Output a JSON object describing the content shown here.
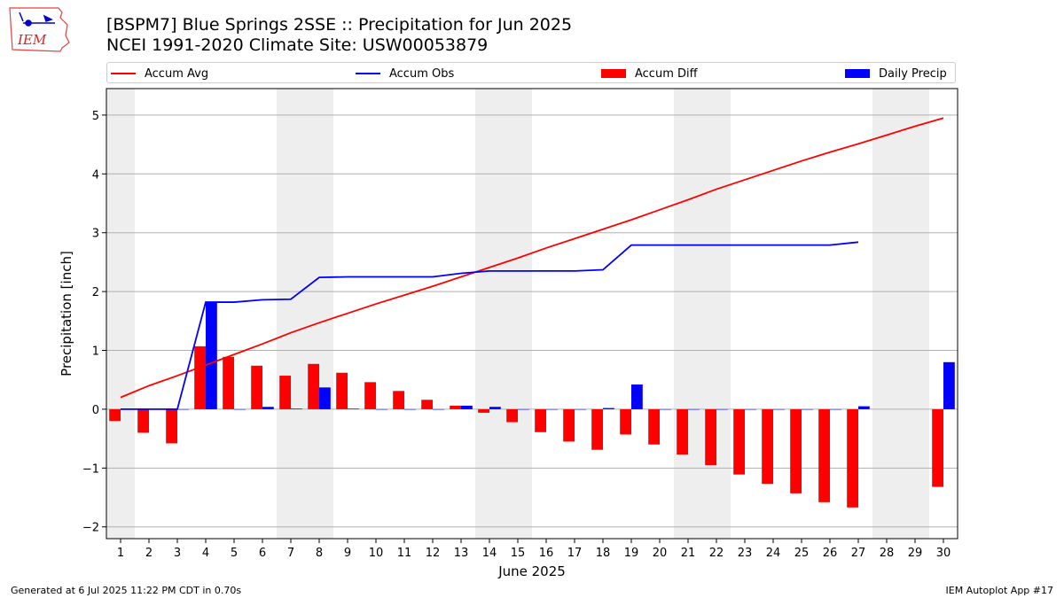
{
  "header": {
    "logo_text": "IEM",
    "title_line1": "[BSPM7] Blue Springs 2SSE :: Precipitation for Jun 2025",
    "title_line2": "NCEI 1991-2020 Climate Site: USW00053879"
  },
  "legend": {
    "placement": "top",
    "items": [
      {
        "label": "Accum Avg",
        "kind": "line",
        "color": "#ff0000"
      },
      {
        "label": "Accum Obs",
        "kind": "line",
        "color": "#0000ff"
      },
      {
        "label": "Accum Diff",
        "kind": "bar",
        "color": "#ff0000"
      },
      {
        "label": "Daily Precip",
        "kind": "bar",
        "color": "#0000ff"
      }
    ]
  },
  "footer": {
    "left": "Generated at 6 Jul 2025 11:22 PM CDT in 0.70s",
    "right": "IEM Autoplot App #17"
  },
  "chart_data": {
    "type": "bar",
    "title": "[BSPM7] Blue Springs 2SSE :: Precipitation for Jun 2025",
    "subtitle": "NCEI 1991-2020 Climate Site: USW00053879",
    "xlabel": "June 2025",
    "ylabel": "Precipitation [inch]",
    "xlim": [
      0.5,
      30.5
    ],
    "ylim": [
      -2.2,
      5.45
    ],
    "yticks": [
      -2,
      -1,
      0,
      1,
      2,
      3,
      4,
      5
    ],
    "ytick_labels": [
      "−2",
      "−1",
      "0",
      "1",
      "2",
      "3",
      "4",
      "5"
    ],
    "grid": "y",
    "weekend_shading": [
      [
        0.5,
        1.5
      ],
      [
        6.5,
        8.5
      ],
      [
        13.5,
        15.5
      ],
      [
        20.5,
        22.5
      ],
      [
        27.5,
        29.5
      ]
    ],
    "categories": [
      "1",
      "2",
      "3",
      "4",
      "5",
      "6",
      "7",
      "8",
      "9",
      "10",
      "11",
      "12",
      "13",
      "14",
      "15",
      "16",
      "17",
      "18",
      "19",
      "20",
      "21",
      "22",
      "23",
      "24",
      "25",
      "26",
      "27",
      "28",
      "29",
      "30"
    ],
    "series": [
      {
        "name": "Accum Avg",
        "type": "line",
        "color": "#ff0000",
        "values": [
          0.2,
          0.4,
          0.57,
          0.75,
          0.93,
          1.11,
          1.3,
          1.47,
          1.63,
          1.79,
          1.94,
          2.09,
          2.25,
          2.41,
          2.57,
          2.74,
          2.9,
          3.06,
          3.22,
          3.39,
          3.56,
          3.74,
          3.9,
          4.06,
          4.22,
          4.37,
          4.51,
          4.66,
          4.81,
          4.95
        ]
      },
      {
        "name": "Accum Obs",
        "type": "line",
        "color": "#0000ff",
        "values": [
          0.0,
          0.0,
          0.0,
          1.82,
          1.82,
          1.86,
          1.87,
          2.24,
          2.25,
          2.25,
          2.25,
          2.25,
          2.31,
          2.35,
          2.35,
          2.35,
          2.35,
          2.37,
          2.79,
          2.79,
          2.79,
          2.79,
          2.79,
          2.79,
          2.79,
          2.79,
          2.84,
          null,
          null,
          null
        ]
      },
      {
        "name": "Accum Diff",
        "type": "bar",
        "color": "#ff0000",
        "values": [
          -0.2,
          -0.4,
          -0.58,
          1.07,
          0.89,
          0.74,
          0.57,
          0.77,
          0.62,
          0.46,
          0.31,
          0.16,
          0.06,
          -0.06,
          -0.22,
          -0.39,
          -0.55,
          -0.69,
          -0.43,
          -0.6,
          -0.77,
          -0.95,
          -1.11,
          -1.27,
          -1.43,
          -1.58,
          -1.67,
          null,
          null,
          -1.32
        ]
      },
      {
        "name": "Daily Precip",
        "type": "bar",
        "color": "#0000ff",
        "values": [
          0.0,
          0.0,
          0.0,
          1.82,
          0.0,
          0.04,
          0.01,
          0.37,
          0.01,
          0.0,
          0.0,
          0.0,
          0.06,
          0.04,
          0.0,
          0.0,
          0.0,
          0.02,
          0.42,
          0.0,
          0.0,
          0.0,
          0.0,
          0.0,
          0.0,
          0.0,
          0.05,
          null,
          null,
          0.8
        ]
      }
    ]
  }
}
